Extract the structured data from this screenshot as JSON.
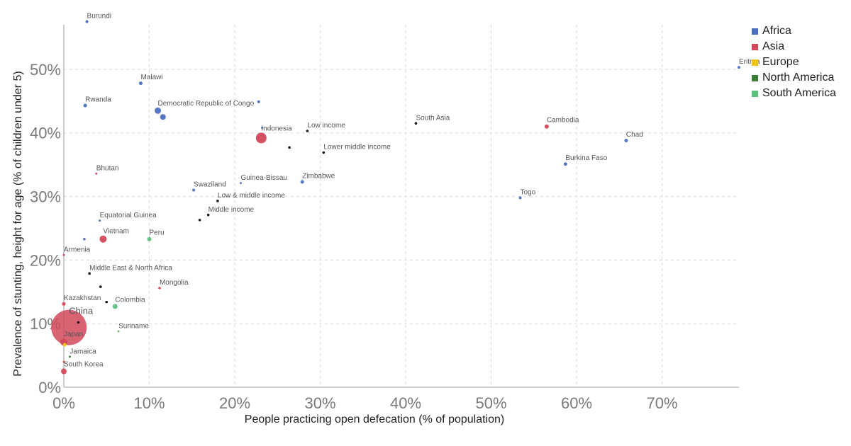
{
  "chart_data": {
    "type": "scatter",
    "xlabel": "People practicing open defecation (% of population)",
    "ylabel": "Prevalence of stunting, height for age (% of children under 5)",
    "xlim": [
      0,
      79
    ],
    "ylim": [
      0,
      57
    ],
    "x_ticks": [
      0,
      10,
      20,
      30,
      40,
      50,
      60,
      70
    ],
    "x_tick_labels": [
      "0%",
      "10%",
      "20%",
      "30%",
      "40%",
      "50%",
      "60%",
      "70%"
    ],
    "y_ticks": [
      0,
      10,
      20,
      30,
      40,
      50
    ],
    "y_tick_labels": [
      "0%",
      "10%",
      "20%",
      "30%",
      "40%",
      "50%"
    ],
    "grid": true,
    "legend_position": "top-right",
    "legend": [
      {
        "name": "Africa",
        "color": "#4c6fbf"
      },
      {
        "name": "Asia",
        "color": "#d1485b"
      },
      {
        "name": "Europe",
        "color": "#f2c318"
      },
      {
        "name": "North America",
        "color": "#3c7d3a"
      },
      {
        "name": "South America",
        "color": "#5cc07e"
      }
    ],
    "points": [
      {
        "label": "Burundi",
        "x": 2.7,
        "y": 57.5,
        "group": "Africa",
        "size": 2
      },
      {
        "label": "Eritrea",
        "x": 79.0,
        "y": 50.3,
        "group": "Africa",
        "size": 2
      },
      {
        "label": "Malawi",
        "x": 9.0,
        "y": 47.8,
        "group": "Africa",
        "size": 2.5
      },
      {
        "label": "Rwanda",
        "x": 2.5,
        "y": 44.3,
        "group": "Africa",
        "size": 2.5
      },
      {
        "label": "Democratic Republic of Congo",
        "x": 11.0,
        "y": 43.5,
        "group": "Africa",
        "size": 4.5
      },
      {
        "label": "",
        "x": 11.6,
        "y": 42.5,
        "group": "Africa",
        "size": 4
      },
      {
        "label": "",
        "x": 22.8,
        "y": 44.9,
        "group": "Africa",
        "size": 2
      },
      {
        "label": "Indonesia",
        "x": 23.1,
        "y": 39.2,
        "group": "Asia",
        "size": 7.5
      },
      {
        "label": "",
        "x": 23.2,
        "y": 40.8,
        "group": "Africa",
        "size": 1.5
      },
      {
        "label": "Low income",
        "x": 28.5,
        "y": 40.3,
        "group": "Aggregate",
        "size": 1.8
      },
      {
        "label": "",
        "x": 26.4,
        "y": 37.7,
        "group": "Aggregate",
        "size": 1.8
      },
      {
        "label": "Lower middle income",
        "x": 30.4,
        "y": 36.9,
        "group": "Aggregate",
        "size": 1.8
      },
      {
        "label": "South Asia",
        "x": 41.2,
        "y": 41.5,
        "group": "Aggregate",
        "size": 1.8
      },
      {
        "label": "Cambodia",
        "x": 56.5,
        "y": 41.0,
        "group": "Asia",
        "size": 3
      },
      {
        "label": "Chad",
        "x": 65.8,
        "y": 38.8,
        "group": "Africa",
        "size": 2.5
      },
      {
        "label": "Burkina Faso",
        "x": 58.7,
        "y": 35.1,
        "group": "Africa",
        "size": 2.5
      },
      {
        "label": "Bhutan",
        "x": 3.8,
        "y": 33.6,
        "group": "Asia",
        "size": 1.5
      },
      {
        "label": "Guinea-Bissau",
        "x": 20.7,
        "y": 32.1,
        "group": "Africa",
        "size": 1.5
      },
      {
        "label": "Zimbabwe",
        "x": 27.9,
        "y": 32.3,
        "group": "Africa",
        "size": 2.5
      },
      {
        "label": "Swaziland",
        "x": 15.2,
        "y": 31.0,
        "group": "Africa",
        "size": 2
      },
      {
        "label": "Low & middle income",
        "x": 18.0,
        "y": 29.3,
        "group": "Aggregate",
        "size": 1.8
      },
      {
        "label": "Togo",
        "x": 53.4,
        "y": 29.8,
        "group": "Africa",
        "size": 2
      },
      {
        "label": "Middle income",
        "x": 16.9,
        "y": 27.1,
        "group": "Aggregate",
        "size": 1.8
      },
      {
        "label": "",
        "x": 15.9,
        "y": 26.3,
        "group": "Aggregate",
        "size": 1.8
      },
      {
        "label": "Equatorial Guinea",
        "x": 4.2,
        "y": 26.2,
        "group": "Africa",
        "size": 1.5
      },
      {
        "label": "Vietnam",
        "x": 4.6,
        "y": 23.3,
        "group": "Asia",
        "size": 5
      },
      {
        "label": "",
        "x": 2.4,
        "y": 23.3,
        "group": "Africa",
        "size": 1.8
      },
      {
        "label": "Peru",
        "x": 10.0,
        "y": 23.3,
        "group": "South America",
        "size": 3
      },
      {
        "label": "Armenia",
        "x": 0.0,
        "y": 20.8,
        "group": "Asia",
        "size": 1.5
      },
      {
        "label": "Middle East & North Africa",
        "x": 3.0,
        "y": 17.9,
        "group": "Aggregate",
        "size": 1.8
      },
      {
        "label": "",
        "x": 4.3,
        "y": 15.8,
        "group": "Aggregate",
        "size": 1.8
      },
      {
        "label": "Mongolia",
        "x": 11.2,
        "y": 15.6,
        "group": "Asia",
        "size": 1.8
      },
      {
        "label": "",
        "x": 5.0,
        "y": 13.4,
        "group": "Aggregate",
        "size": 1.8
      },
      {
        "label": "Kazakhstan",
        "x": 0.0,
        "y": 13.1,
        "group": "Asia",
        "size": 2.5
      },
      {
        "label": "Colombia",
        "x": 6.0,
        "y": 12.7,
        "group": "South America",
        "size": 3.5
      },
      {
        "label": "",
        "x": 1.7,
        "y": 10.2,
        "group": "Aggregate",
        "size": 1.8
      },
      {
        "label": "China",
        "x": 0.6,
        "y": 9.4,
        "group": "Asia",
        "size": 25,
        "big": true
      },
      {
        "label": "Suriname",
        "x": 6.4,
        "y": 8.8,
        "group": "South America",
        "size": 1.5
      },
      {
        "label": "Japan",
        "x": 0.0,
        "y": 7.1,
        "group": "Asia",
        "size": 5
      },
      {
        "label": "",
        "x": 0.1,
        "y": 6.7,
        "group": "Europe",
        "size": 2.5
      },
      {
        "label": "Jamaica",
        "x": 0.7,
        "y": 4.8,
        "group": "North America",
        "size": 1.5
      },
      {
        "label": "",
        "x": 0.0,
        "y": 4.0,
        "group": "Asia",
        "size": 1.5
      },
      {
        "label": "South Korea",
        "x": 0.0,
        "y": 2.5,
        "group": "Asia",
        "size": 4
      }
    ]
  },
  "colors": {
    "Africa": "#4c6fbf",
    "Asia": "#d1485b",
    "Europe": "#f2c318",
    "North America": "#3c7d3a",
    "South America": "#5cc07e",
    "Aggregate": "#111111"
  }
}
